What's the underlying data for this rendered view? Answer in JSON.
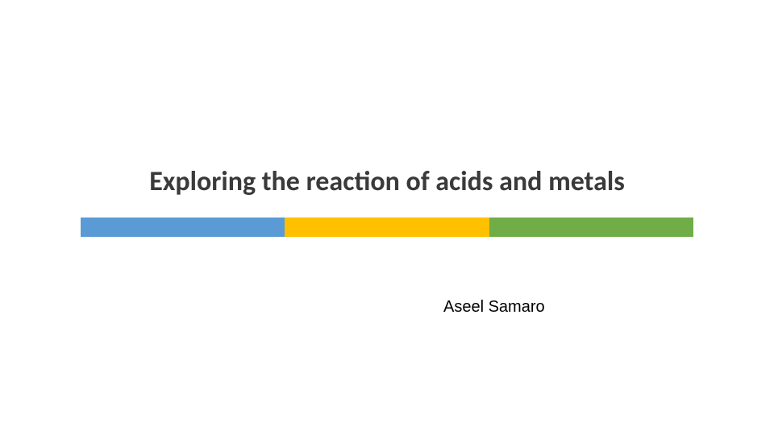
{
  "slide": {
    "title": "Exploring the reaction of acids and metals",
    "author": "Aseel Samaro",
    "background_color": "#ffffff",
    "title_fontsize": 34,
    "title_color": "#3a3a3a",
    "author_fontsize": 20,
    "author_color": "#000000",
    "color_bar": {
      "height": 24,
      "segments": [
        {
          "color": "#5b9bd5"
        },
        {
          "color": "#ffc000"
        },
        {
          "color": "#70ad47"
        }
      ]
    }
  }
}
